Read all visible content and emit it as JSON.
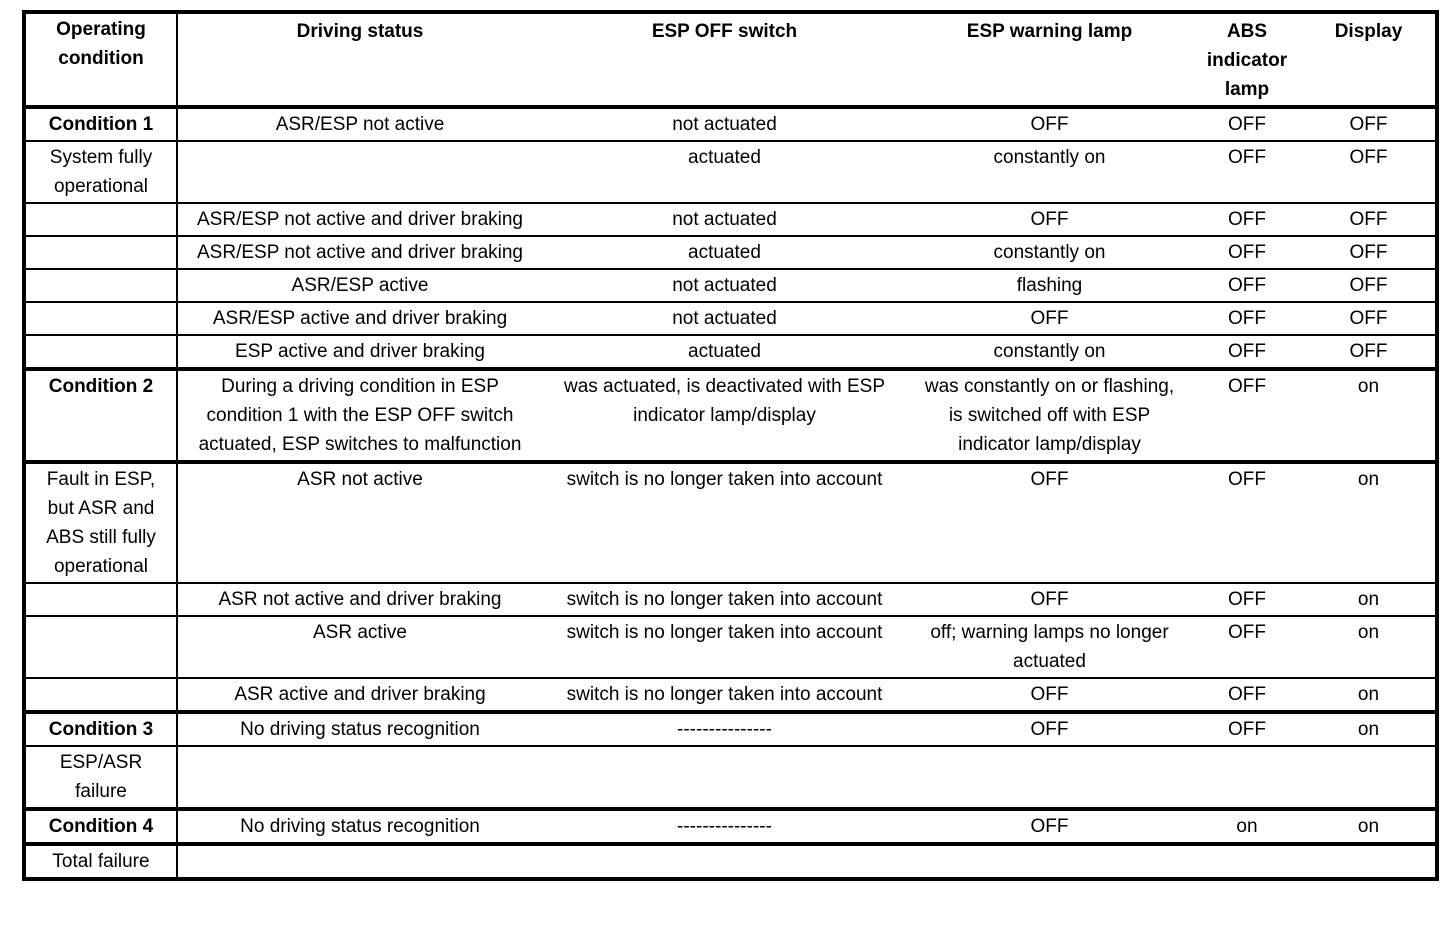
{
  "table": {
    "headers": [
      "Operating condition",
      "Driving status",
      "ESP OFF switch",
      "ESP warning lamp",
      "ABS indicator lamp",
      "Display"
    ],
    "rows": [
      {
        "thick_top": true,
        "cond": true,
        "cells": [
          "Condition 1",
          "ASR/ESP not active",
          "not actuated",
          "OFF",
          "OFF",
          "OFF"
        ]
      },
      {
        "thick_top": false,
        "cond": false,
        "cells": [
          "System fully operational",
          "",
          "actuated",
          "constantly on",
          "OFF",
          "OFF"
        ]
      },
      {
        "thick_top": false,
        "cond": false,
        "cells": [
          "",
          "ASR/ESP not active and driver braking",
          "not actuated",
          "OFF",
          "OFF",
          "OFF"
        ]
      },
      {
        "thick_top": false,
        "cond": false,
        "cells": [
          "",
          "ASR/ESP not active and driver braking",
          "actuated",
          "constantly on",
          "OFF",
          "OFF"
        ]
      },
      {
        "thick_top": false,
        "cond": false,
        "cells": [
          "",
          "ASR/ESP active",
          "not actuated",
          "flashing",
          "OFF",
          "OFF"
        ]
      },
      {
        "thick_top": false,
        "cond": false,
        "cells": [
          "",
          "ASR/ESP active and driver braking",
          "not actuated",
          "OFF",
          "OFF",
          "OFF"
        ]
      },
      {
        "thick_top": false,
        "cond": false,
        "cells": [
          "",
          "ESP active and driver braking",
          "actuated",
          "constantly on",
          "OFF",
          "OFF"
        ]
      },
      {
        "thick_top": true,
        "cond": true,
        "cells": [
          "Condition 2",
          "During a driving condition in ESP condition 1 with the ESP OFF switch actuated, ESP switches to malfunction",
          "was actuated, is deactivated with ESP indicator lamp/display",
          "was constantly on or flashing, is switched off with ESP indicator lamp/display",
          "OFF",
          "on"
        ]
      },
      {
        "thick_top": true,
        "cond": false,
        "cells": [
          "Fault in ESP, but ASR and ABS still fully operational",
          "ASR not active",
          "switch is no longer taken into account",
          "OFF",
          "OFF",
          "on"
        ]
      },
      {
        "thick_top": false,
        "cond": false,
        "cells": [
          "",
          "ASR not active and driver braking",
          "switch is no longer taken into account",
          "OFF",
          "OFF",
          "on"
        ]
      },
      {
        "thick_top": false,
        "cond": false,
        "cells": [
          "",
          "ASR active",
          "switch is no longer taken into account",
          "off; warning lamps no longer actuated",
          "OFF",
          "on"
        ]
      },
      {
        "thick_top": false,
        "cond": false,
        "cells": [
          "",
          "ASR active and driver braking",
          "switch is no longer taken into account",
          "OFF",
          "OFF",
          "on"
        ]
      },
      {
        "thick_top": true,
        "cond": true,
        "cells": [
          "Condition 3",
          "No driving status recognition",
          "---------------",
          "OFF",
          "OFF",
          "on"
        ]
      },
      {
        "thick_top": false,
        "cond": false,
        "cells": [
          "ESP/ASR failure",
          "",
          "",
          "",
          "",
          ""
        ]
      },
      {
        "thick_top": true,
        "cond": true,
        "cells": [
          "Condition 4",
          "No driving status recognition",
          "---------------",
          "OFF",
          "on",
          "on"
        ]
      },
      {
        "thick_top": true,
        "cond": false,
        "cells": [
          "Total failure",
          "",
          "",
          "",
          "",
          ""
        ]
      }
    ]
  }
}
